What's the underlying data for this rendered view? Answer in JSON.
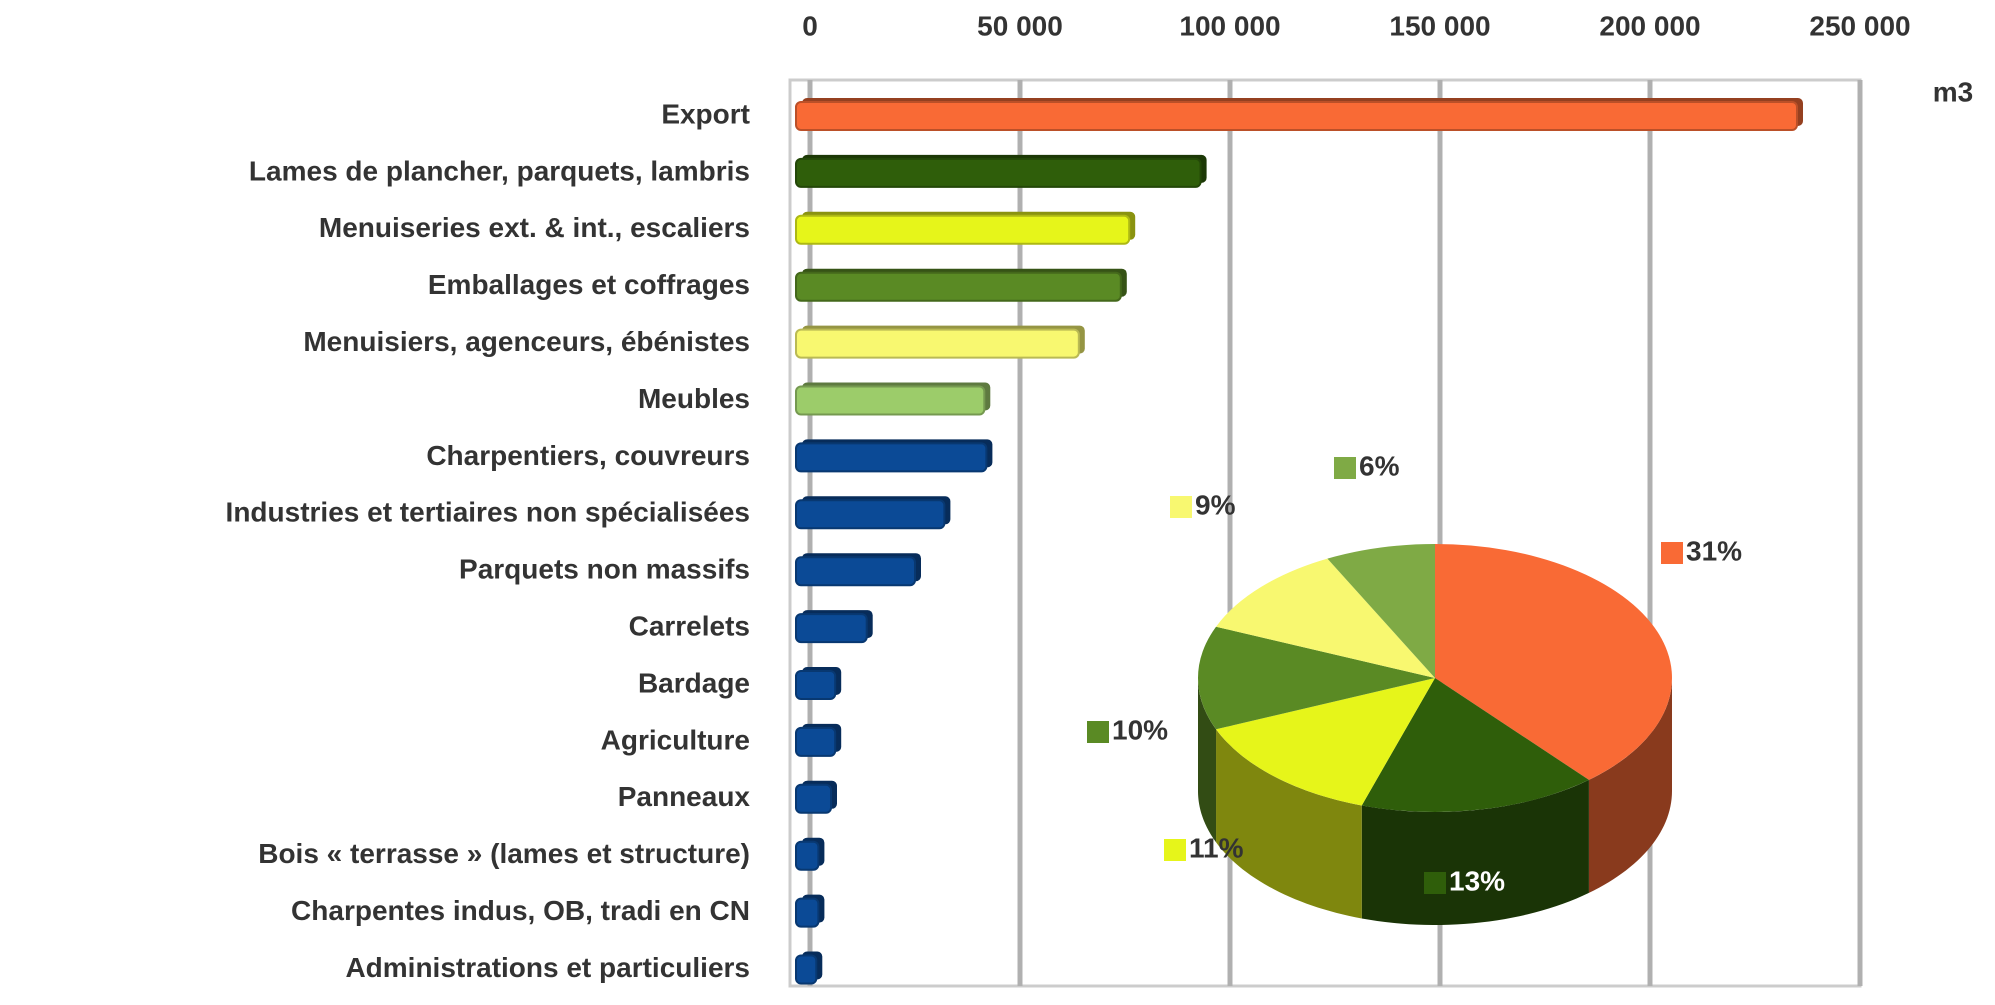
{
  "chart_data": [
    {
      "type": "barh",
      "unit_label": "m3",
      "categories": [
        "Export",
        "Lames de plancher, parquets, lambris",
        "Menuiseries ext. & int., escaliers",
        "Emballages et coffrages",
        "Menuisiers, agenceurs, ébénistes",
        "Meubles",
        "Charpentiers, couvreurs",
        "Industries et tertiaires non spécialisées",
        "Parquets non massifs",
        "Carrelets",
        "Bardage",
        "Agriculture",
        "Panneaux",
        "Bois « terrasse » (lames et structure)",
        "Charpentes indus, OB, tradi en CN",
        "Administrations et particuliers"
      ],
      "values": [
        235000,
        93000,
        76000,
        74000,
        64000,
        41500,
        42000,
        32000,
        25000,
        13500,
        6000,
        6000,
        5000,
        2000,
        2000,
        1500
      ],
      "colors": [
        "#f96a35",
        "#2f5e0a",
        "#e6f51a",
        "#5a8a24",
        "#f8f870",
        "#9ccc6a",
        "#0b4a96",
        "#0b4a96",
        "#0b4a96",
        "#0b4a96",
        "#0b4a96",
        "#0b4a96",
        "#0b4a96",
        "#0b4a96",
        "#0b4a96",
        "#0b4a96"
      ],
      "xlim": [
        0,
        250000
      ],
      "xticks": [
        0,
        {
          "value": 50000,
          "label": "50 000"
        },
        {
          "value": 100000,
          "label": "100 000"
        },
        {
          "value": 150000,
          "label": "150 000"
        },
        {
          "value": 200000,
          "label": "200 000"
        },
        {
          "value": 250000,
          "label": "250 000"
        }
      ],
      "grid": true
    },
    {
      "type": "pie",
      "values": [
        31,
        13,
        11,
        10,
        9,
        6
      ],
      "value_labels": [
        "31%",
        "13%",
        "11%",
        "10%",
        "9%",
        "6%"
      ],
      "colors": [
        "#f96a35",
        "#2f5e0a",
        "#e6f51a",
        "#5a8a24",
        "#f8f870",
        "#7faa45"
      ]
    }
  ]
}
